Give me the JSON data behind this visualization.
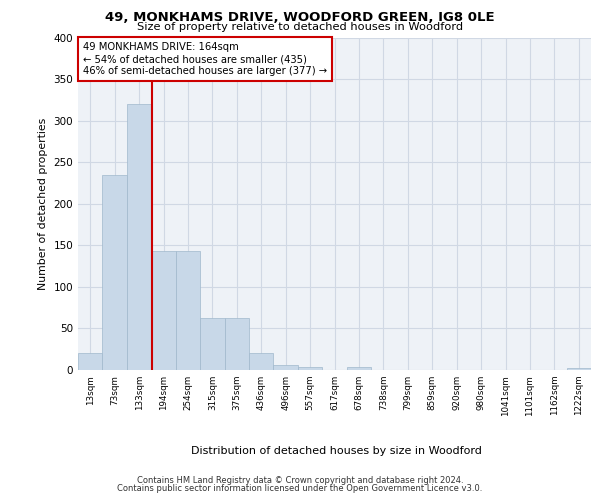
{
  "title": "49, MONKHAMS DRIVE, WOODFORD GREEN, IG8 0LE",
  "subtitle": "Size of property relative to detached houses in Woodford",
  "xlabel": "Distribution of detached houses by size in Woodford",
  "ylabel": "Number of detached properties",
  "bin_labels": [
    "13sqm",
    "73sqm",
    "133sqm",
    "194sqm",
    "254sqm",
    "315sqm",
    "375sqm",
    "436sqm",
    "496sqm",
    "557sqm",
    "617sqm",
    "678sqm",
    "738sqm",
    "799sqm",
    "859sqm",
    "920sqm",
    "980sqm",
    "1041sqm",
    "1101sqm",
    "1162sqm",
    "1222sqm"
  ],
  "bar_heights": [
    20,
    235,
    320,
    143,
    143,
    63,
    63,
    20,
    6,
    4,
    0,
    4,
    0,
    0,
    0,
    0,
    0,
    0,
    0,
    0,
    3
  ],
  "bar_color": "#c8d8e8",
  "bar_edge_color": "#a0b8cc",
  "vline_color": "#cc0000",
  "annotation_text": "49 MONKHAMS DRIVE: 164sqm\n← 54% of detached houses are smaller (435)\n46% of semi-detached houses are larger (377) →",
  "annotation_box_color": "#cc0000",
  "ylim": [
    0,
    400
  ],
  "yticks": [
    0,
    50,
    100,
    150,
    200,
    250,
    300,
    350,
    400
  ],
  "footer1": "Contains HM Land Registry data © Crown copyright and database right 2024.",
  "footer2": "Contains public sector information licensed under the Open Government Licence v3.0.",
  "bg_color": "#eef2f7",
  "grid_color": "#d0d8e4"
}
